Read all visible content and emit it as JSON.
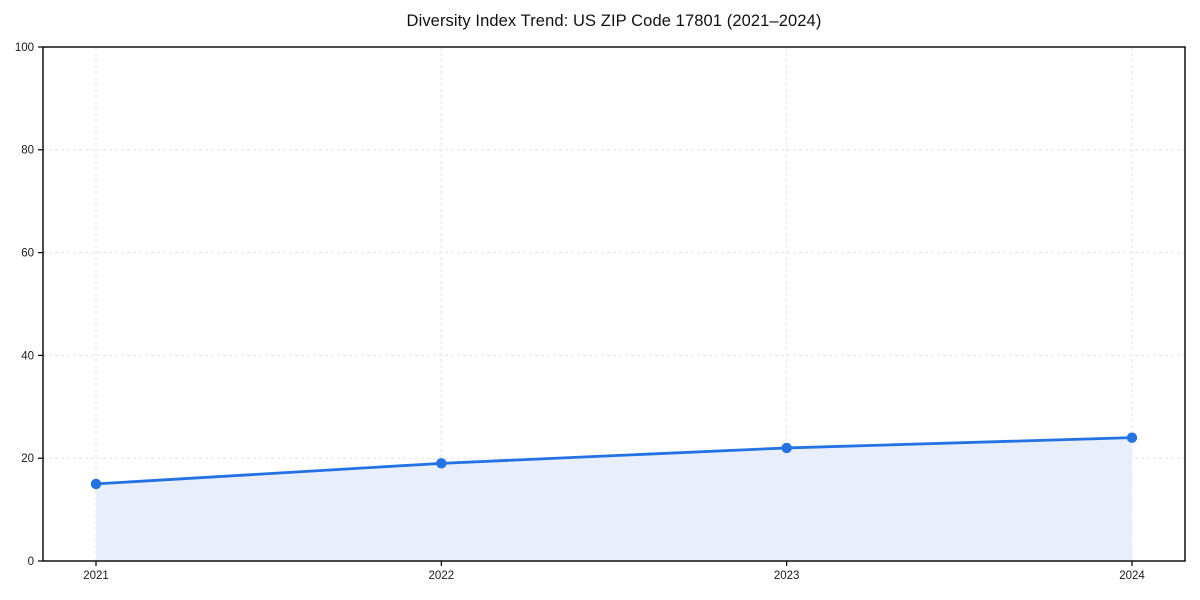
{
  "chart_data": {
    "type": "line",
    "title": "Diversity Index Trend: US ZIP Code 17801 (2021–2024)",
    "categories": [
      "2021",
      "2022",
      "2023",
      "2024"
    ],
    "series": [
      {
        "name": "Diversity Index",
        "values": [
          15,
          19,
          22,
          24
        ]
      }
    ],
    "xlabel": "",
    "ylabel": "",
    "ylim": [
      0,
      100
    ],
    "yticks": [
      0,
      20,
      40,
      60,
      80,
      100
    ],
    "grid": "dashed-both-axes",
    "legend_position": "none",
    "marker": "circle",
    "area_fill": true,
    "colors": {
      "line": "#2272e3",
      "marker": "#2272e3",
      "area": "#e8eefb",
      "grid": "#e4e4e4",
      "spine": "#000000",
      "text": "#1a1a1a"
    }
  }
}
